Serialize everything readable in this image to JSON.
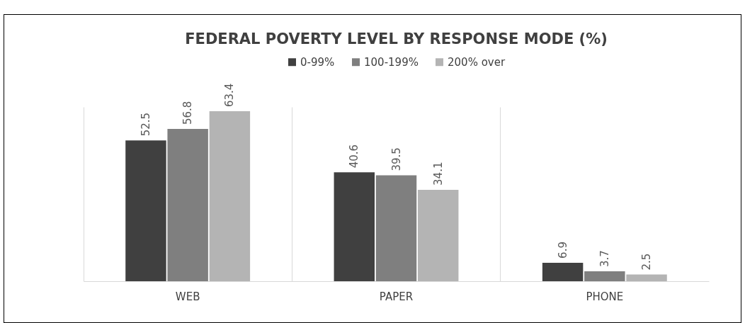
{
  "chart_data": {
    "type": "bar",
    "title": "FEDERAL POVERTY LEVEL BY RESPONSE MODE (%)",
    "categories": [
      "WEB",
      "PAPER",
      "PHONE"
    ],
    "series": [
      {
        "name": "0-99%",
        "color": "#404040",
        "values": [
          52.5,
          40.6,
          6.9
        ]
      },
      {
        "name": "100-199%",
        "color": "#7f7f7f",
        "values": [
          56.8,
          39.5,
          3.7
        ]
      },
      {
        "name": "200% over",
        "color": "#b4b4b4",
        "values": [
          63.4,
          34.1,
          2.5
        ]
      }
    ],
    "data_labels": true,
    "grid": "x",
    "legend": "top",
    "relative": false
  }
}
